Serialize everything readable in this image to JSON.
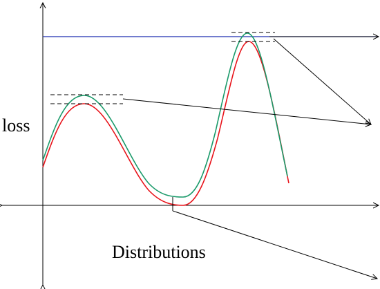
{
  "labels": {
    "y_axis": "loss",
    "x_axis": "Distributions"
  },
  "colors": {
    "curve_red": "#e8141b",
    "curve_green": "#1a9a6a",
    "reference_line": "#1f2fb0",
    "axes": "#000000"
  }
}
